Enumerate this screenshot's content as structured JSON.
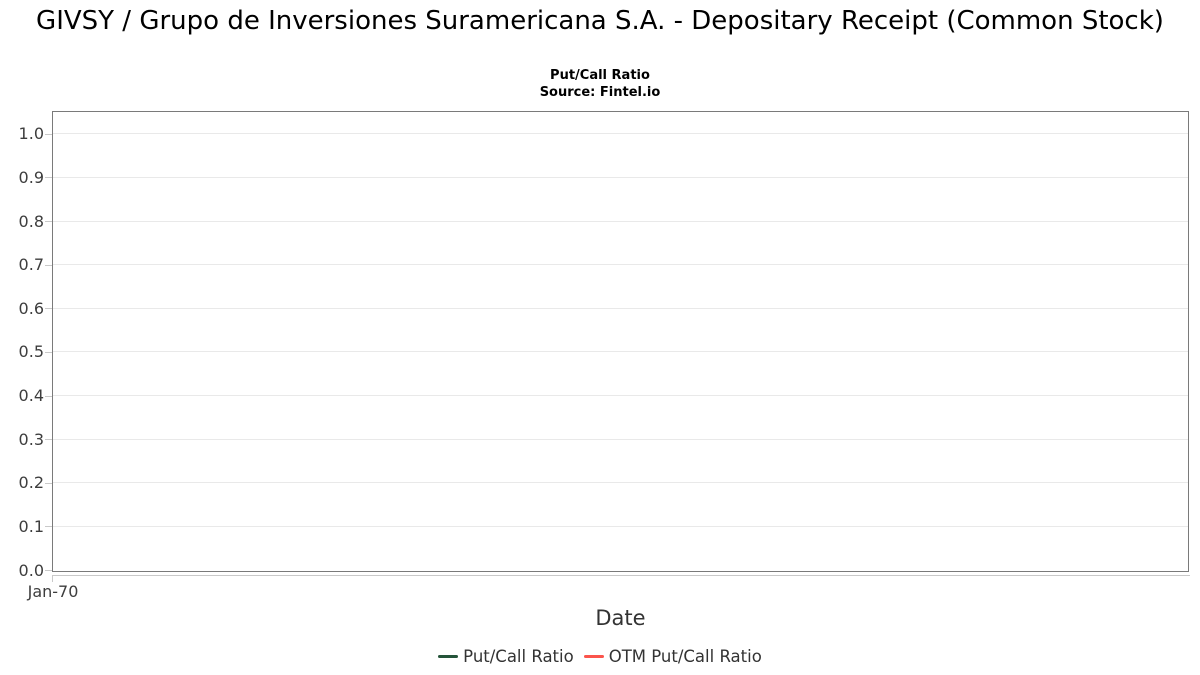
{
  "chart_data": {
    "type": "line",
    "title": "GIVSY / Grupo de Inversiones Suramericana S.A. - Depositary Receipt (Common Stock)",
    "subtitle": "Put/Call Ratio",
    "source": "Source: Fintel.io",
    "xlabel": "Date",
    "ylabel": "",
    "ylim": [
      0.0,
      1.05
    ],
    "y_ticks": [
      0.0,
      0.1,
      0.2,
      0.3,
      0.4,
      0.5,
      0.6,
      0.7,
      0.8,
      0.9,
      1.0
    ],
    "y_tick_labels": [
      "0.0",
      "0.1",
      "0.2",
      "0.3",
      "0.4",
      "0.5",
      "0.6",
      "0.7",
      "0.8",
      "0.9",
      "1.0"
    ],
    "x_tick_labels": [
      "Jan-70"
    ],
    "grid": true,
    "legend_position": "bottom",
    "series": [
      {
        "name": "Put/Call Ratio",
        "color": "#25543a",
        "x": [],
        "values": []
      },
      {
        "name": "OTM Put/Call Ratio",
        "color": "#fb544c",
        "x": [],
        "values": []
      }
    ]
  },
  "colors": {
    "background": "#ffffff",
    "plot_border": "#7a7a7a",
    "gridline": "#e9e9e9",
    "axis_line": "#c9c9c9",
    "tick_label": "#3d3d3d",
    "axis_title": "#333333",
    "legend_text": "#333333",
    "title_text": "#000000"
  }
}
